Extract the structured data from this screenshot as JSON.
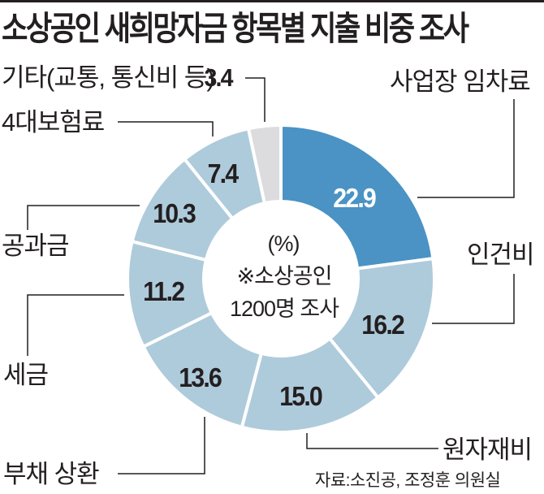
{
  "header": {
    "title": "소상공인 새희망자금 항목별 지출 비중 조사"
  },
  "center": {
    "unit": "(%)",
    "note_line1": "※소상공인",
    "note_line2": "1200명 조사"
  },
  "labels": {
    "rent": "사업장 임차료",
    "labor": "인건비",
    "materials": "원자재비",
    "debt": "부채 상환",
    "tax": "세금",
    "utilities": "공과금",
    "insurance": "4대보험료",
    "other": "기타(교통, 통신비 등)"
  },
  "values": {
    "rent": "22.9",
    "labor": "16.2",
    "materials": "15.0",
    "debt": "13.6",
    "tax": "11.2",
    "utilities": "10.3",
    "insurance": "7.4",
    "other": "3.4"
  },
  "source": "자료:소진공, 조정훈 의원실",
  "colors": {
    "highlight": "#4a93c4",
    "slice": "#aecbdb",
    "other": "#dcdcde",
    "text": "#231f20"
  },
  "chart_data": {
    "type": "pie",
    "subtype": "donut",
    "title": "소상공인 새희망자금 항목별 지출 비중 조사",
    "unit": "%",
    "annotation": "※소상공인 1200명 조사",
    "source": "자료:소진공, 조정훈 의원실",
    "start_angle": "12 o'clock, clockwise",
    "categories": [
      "사업장 임차료",
      "인건비",
      "원자재비",
      "부채 상환",
      "세금",
      "공과금",
      "4대보험료",
      "기타(교통, 통신비 등)"
    ],
    "values": [
      22.9,
      16.2,
      15.0,
      13.6,
      11.2,
      10.3,
      7.4,
      3.4
    ],
    "colors": [
      "#4a93c4",
      "#aecbdb",
      "#aecbdb",
      "#aecbdb",
      "#aecbdb",
      "#aecbdb",
      "#aecbdb",
      "#dcdcde"
    ]
  }
}
